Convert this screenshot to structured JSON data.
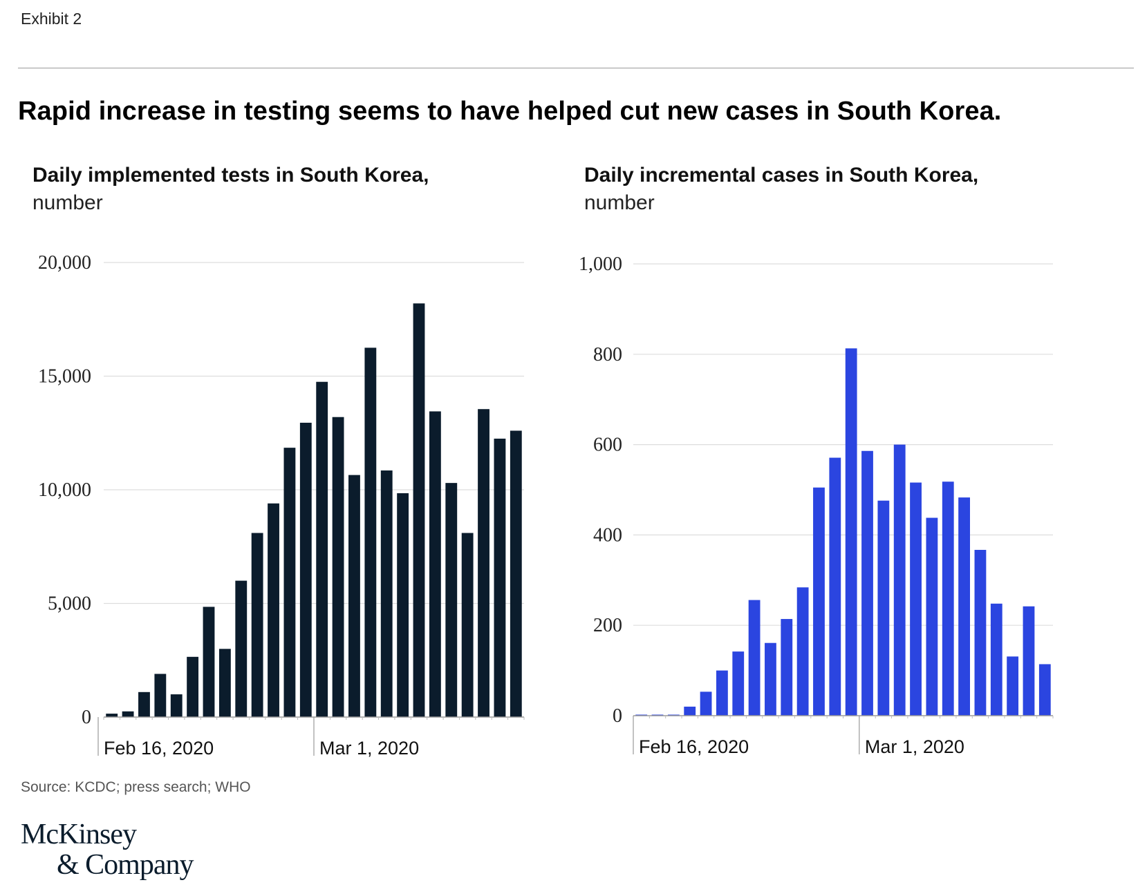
{
  "exhibit_label": "Exhibit 2",
  "headline": "Rapid increase in testing seems to have helped cut new cases in South Korea.",
  "source": "Source: KCDC; press search; WHO",
  "logo": {
    "line1": "McKinsey",
    "line2": "& Company"
  },
  "colors": {
    "tests_bar": "#0b1c2c",
    "cases_bar": "#2b45e0",
    "grid": "#dddddd",
    "axis": "#999999"
  },
  "chart_data": [
    {
      "type": "bar",
      "title": "Daily implemented tests in South Korea,",
      "unit": "number",
      "ylim": [
        0,
        20000
      ],
      "yticks": [
        0,
        5000,
        10000,
        15000,
        20000
      ],
      "ytick_labels": [
        "0",
        "5,000",
        "10,000",
        "15,000",
        "20,000"
      ],
      "xtick_labels": [
        {
          "index": 0,
          "label": "Feb 16, 2020"
        },
        {
          "index": 13,
          "label": "Mar 1, 2020"
        }
      ],
      "grid": true,
      "values": [
        150,
        250,
        1100,
        1900,
        1000,
        2650,
        4850,
        3000,
        6000,
        8100,
        9400,
        11850,
        12950,
        14750,
        13200,
        10650,
        16250,
        10850,
        9850,
        18200,
        13450,
        10300,
        8100,
        13550,
        12250,
        12600
      ]
    },
    {
      "type": "bar",
      "title": "Daily incremental cases in South Korea,",
      "unit": "number",
      "ylim": [
        0,
        1000
      ],
      "yticks": [
        0,
        200,
        400,
        600,
        800,
        1000
      ],
      "ytick_labels": [
        "0",
        "200",
        "400",
        "600",
        "800",
        "1,000"
      ],
      "xtick_labels": [
        {
          "index": 0,
          "label": "Feb 16, 2020"
        },
        {
          "index": 14,
          "label": "Mar 1, 2020"
        }
      ],
      "grid": true,
      "values": [
        1,
        1,
        1,
        20,
        53,
        100,
        142,
        256,
        161,
        214,
        284,
        505,
        571,
        813,
        586,
        476,
        600,
        516,
        438,
        518,
        483,
        367,
        248,
        131,
        242,
        114
      ]
    }
  ]
}
